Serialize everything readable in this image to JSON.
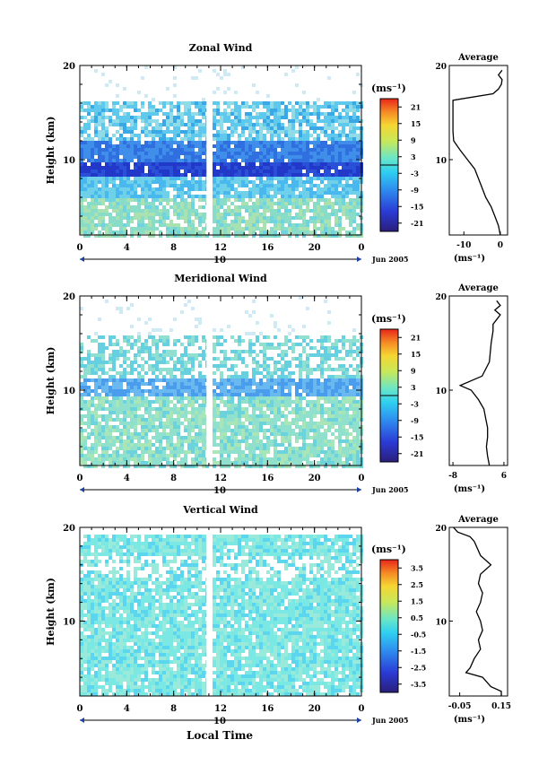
{
  "figure": {
    "xlabel_bottom": "Local Time",
    "date_label": "Jun 2005"
  },
  "chart_data": [
    {
      "type": "heatmap",
      "title": "Zonal Wind",
      "ylabel": "Height (km)",
      "yticks": [
        "20",
        "10"
      ],
      "xticks": [
        "0",
        "4",
        "8",
        "12",
        "16",
        "20",
        "0"
      ],
      "xlim": [
        0,
        24
      ],
      "ylim": [
        2,
        20
      ],
      "day_label": "10",
      "date_label": "Jun 2005",
      "data_gap_hours": [
        10.8,
        11.3
      ],
      "colorbar": {
        "unit": "(ms⁻¹)",
        "ticks": [
          "21",
          "15",
          "9",
          "3",
          "-3",
          "-9",
          "-15",
          "-21"
        ]
      },
      "profile": {
        "title": "Average",
        "xlabel": "(ms⁻¹)",
        "xticks": [
          "-10",
          "0"
        ],
        "xlim": [
          -14,
          2
        ],
        "yticks": [
          "20",
          "10"
        ],
        "points": [
          [
            0.5,
            19.5
          ],
          [
            -0.5,
            19
          ],
          [
            0.5,
            18.5
          ],
          [
            0.3,
            18
          ],
          [
            -0.5,
            17.5
          ],
          [
            -2,
            17
          ],
          [
            -13,
            16.3
          ],
          [
            -13,
            15
          ],
          [
            -13,
            13
          ],
          [
            -12.8,
            12
          ],
          [
            -11,
            11
          ],
          [
            -9,
            10
          ],
          [
            -7,
            9
          ],
          [
            -6,
            8
          ],
          [
            -5,
            7
          ],
          [
            -4,
            6
          ],
          [
            -2.5,
            5
          ],
          [
            -1.5,
            4
          ],
          [
            -0.5,
            3
          ],
          [
            0,
            2
          ]
        ]
      }
    },
    {
      "type": "heatmap",
      "title": "Meridional Wind",
      "ylabel": "Height (km)",
      "yticks": [
        "20",
        "10"
      ],
      "xticks": [
        "0",
        "4",
        "8",
        "12",
        "16",
        "20",
        "0"
      ],
      "xlim": [
        0,
        24
      ],
      "ylim": [
        2,
        20
      ],
      "day_label": "10",
      "date_label": "Jun 2005",
      "data_gap_hours": [
        10.8,
        11.3
      ],
      "colorbar": {
        "unit": "(ms⁻¹)",
        "ticks": [
          "21",
          "15",
          "9",
          "3",
          "-3",
          "-9",
          "-15",
          "-21"
        ]
      },
      "profile": {
        "title": "Average",
        "xlabel": "(ms⁻¹)",
        "xticks": [
          "-8",
          "6"
        ],
        "xlim": [
          -9,
          7
        ],
        "yticks": [
          "20",
          "10"
        ],
        "points": [
          [
            4,
            19.5
          ],
          [
            5,
            19
          ],
          [
            3.5,
            18.5
          ],
          [
            5,
            18
          ],
          [
            4,
            17.5
          ],
          [
            3,
            17
          ],
          [
            3,
            16.3
          ],
          [
            2.5,
            15
          ],
          [
            2,
            13
          ],
          [
            0,
            11.5
          ],
          [
            -6,
            10.5
          ],
          [
            -3,
            10
          ],
          [
            -1,
            9
          ],
          [
            0.5,
            8
          ],
          [
            1,
            7
          ],
          [
            1.5,
            6
          ],
          [
            1.5,
            5
          ],
          [
            1.2,
            4
          ],
          [
            1.5,
            3
          ],
          [
            2,
            2
          ]
        ]
      }
    },
    {
      "type": "heatmap",
      "title": "Vertical Wind",
      "ylabel": "Height (km)",
      "yticks": [
        "20",
        "10"
      ],
      "xticks": [
        "0",
        "4",
        "8",
        "12",
        "16",
        "20",
        "0"
      ],
      "xlim": [
        0,
        24
      ],
      "ylim": [
        2,
        20
      ],
      "day_label": "10",
      "date_label": "Jun 2005",
      "data_gap_hours": [
        10.8,
        11.3
      ],
      "colorbar": {
        "unit": "(ms⁻¹)",
        "ticks": [
          "3.5",
          "2.5",
          "1.5",
          "0.5",
          "-0.5",
          "-1.5",
          "-2.5",
          "-3.5"
        ]
      },
      "profile": {
        "title": "Average",
        "xlabel": "(ms⁻¹)",
        "xticks": [
          "-0.05",
          "0.15"
        ],
        "xlim": [
          -0.1,
          0.18
        ],
        "yticks": [
          "20",
          "10"
        ],
        "points": [
          [
            -0.08,
            20
          ],
          [
            -0.06,
            19.5
          ],
          [
            0.0,
            19
          ],
          [
            0.02,
            18.5
          ],
          [
            0.05,
            17
          ],
          [
            0.1,
            16
          ],
          [
            0.05,
            15
          ],
          [
            0.04,
            14
          ],
          [
            0.06,
            13
          ],
          [
            0.05,
            12
          ],
          [
            0.03,
            11
          ],
          [
            0.05,
            10
          ],
          [
            0.06,
            9
          ],
          [
            0.04,
            8
          ],
          [
            0.05,
            7
          ],
          [
            0.02,
            6
          ],
          [
            0.0,
            5
          ],
          [
            -0.02,
            4.5
          ],
          [
            0.06,
            4
          ],
          [
            0.1,
            3
          ],
          [
            0.15,
            2.5
          ],
          [
            0.15,
            2
          ]
        ]
      }
    }
  ]
}
